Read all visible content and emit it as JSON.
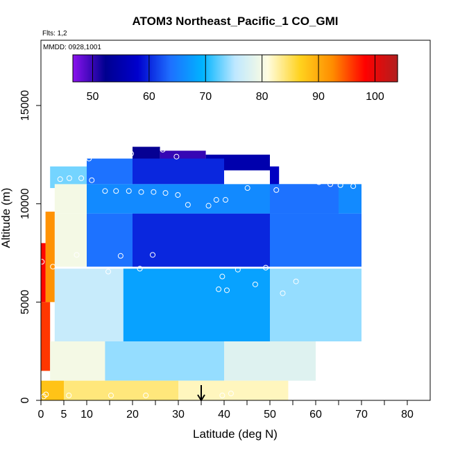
{
  "chart_data": {
    "type": "heatmap",
    "title": "ATOM3 Northeast_Pacific_1 CO_GMI",
    "subtitle": "Flts: 1,2",
    "annotation": "MMDD: 0928,1001",
    "xlabel": "Latitude (deg N)",
    "ylabel": "Altitude (m)",
    "xlim": [
      -0.5,
      84
    ],
    "ylim": [
      0,
      18500
    ],
    "x_ticks": [
      0,
      5,
      10,
      20,
      30,
      40,
      50,
      60,
      70,
      80
    ],
    "x_tick_labels": [
      "0",
      "5",
      "10",
      "20",
      "30",
      "40",
      "50",
      "60",
      "70",
      "80"
    ],
    "x_minor_ticks": [
      15,
      25,
      35,
      45,
      55,
      65,
      75
    ],
    "y_ticks": [
      0,
      5000,
      10000,
      15000
    ],
    "y_tick_labels": [
      "0",
      "5000",
      "10000",
      "15000"
    ],
    "colorbar": {
      "min": 46.5,
      "max": 104,
      "ticks": [
        50,
        60,
        70,
        80,
        90,
        100
      ],
      "tick_labels": [
        "50",
        "60",
        "70",
        "80",
        "90",
        "100"
      ],
      "colors": [
        "#8b12ee",
        "#00008f",
        "#0000cd",
        "#1e6fff",
        "#00b4ff",
        "#bfe8ff",
        "#fffde0",
        "#ffd21e",
        "#ff8c00",
        "#ff0000",
        "#b11f1f"
      ]
    },
    "marker_arrow_latitude": 35,
    "grid": false,
    "legend": "colorbar-top",
    "cells": [
      {
        "lat": [
          20,
          26
        ],
        "alt": [
          12200,
          12900
        ],
        "v": 52
      },
      {
        "lat": [
          26,
          36
        ],
        "alt": [
          11700,
          12700
        ],
        "v": 50
      },
      {
        "lat": [
          36,
          50
        ],
        "alt": [
          11700,
          12500
        ],
        "v": 55
      },
      {
        "lat": [
          50,
          52
        ],
        "alt": [
          10900,
          11900
        ],
        "v": 57
      },
      {
        "lat": [
          20,
          40
        ],
        "alt": [
          11000,
          12300
        ],
        "v": 60
      },
      {
        "lat": [
          10,
          20
        ],
        "alt": [
          11000,
          12300
        ],
        "v": 64
      },
      {
        "lat": [
          2,
          10
        ],
        "alt": [
          10800,
          11900
        ],
        "v": 73
      },
      {
        "lat": [
          10,
          70
        ],
        "alt": [
          9500,
          11000
        ],
        "v": 66
      },
      {
        "lat": [
          50,
          65
        ],
        "alt": [
          9500,
          11000
        ],
        "v": 64
      },
      {
        "lat": [
          3,
          10
        ],
        "alt": [
          9500,
          11000
        ],
        "v": 80
      },
      {
        "lat": [
          10,
          70
        ],
        "alt": [
          6800,
          9500
        ],
        "v": 64
      },
      {
        "lat": [
          20,
          50
        ],
        "alt": [
          6800,
          9500
        ],
        "v": 60
      },
      {
        "lat": [
          3,
          10
        ],
        "alt": [
          6800,
          9500
        ],
        "v": 80
      },
      {
        "lat": [
          1,
          3
        ],
        "alt": [
          5000,
          9600
        ],
        "v": 92
      },
      {
        "lat": [
          0,
          1
        ],
        "alt": [
          5000,
          8000
        ],
        "v": 98
      },
      {
        "lat": [
          3,
          18
        ],
        "alt": [
          3000,
          6700
        ],
        "v": 76
      },
      {
        "lat": [
          18,
          50
        ],
        "alt": [
          3000,
          6700
        ],
        "v": 68
      },
      {
        "lat": [
          50,
          70
        ],
        "alt": [
          3000,
          6700
        ],
        "v": 74
      },
      {
        "lat": [
          0,
          2
        ],
        "alt": [
          1500,
          5000
        ],
        "v": 96
      },
      {
        "lat": [
          2,
          14
        ],
        "alt": [
          1000,
          3000
        ],
        "v": 80
      },
      {
        "lat": [
          14,
          40
        ],
        "alt": [
          1000,
          3000
        ],
        "v": 74
      },
      {
        "lat": [
          40,
          60
        ],
        "alt": [
          1000,
          3000
        ],
        "v": 78
      },
      {
        "lat": [
          0,
          5
        ],
        "alt": [
          0,
          1000
        ],
        "v": 88
      },
      {
        "lat": [
          5,
          30
        ],
        "alt": [
          0,
          1000
        ],
        "v": 84
      },
      {
        "lat": [
          30,
          54
        ],
        "alt": [
          0,
          1000
        ],
        "v": 82
      }
    ],
    "observations": [
      {
        "lat": 10.5,
        "alt": 12300
      },
      {
        "lat": 19.7,
        "alt": 12550
      },
      {
        "lat": 26.6,
        "alt": 12750
      },
      {
        "lat": 29.6,
        "alt": 12400
      },
      {
        "lat": 4.2,
        "alt": 11250
      },
      {
        "lat": 6.2,
        "alt": 11300
      },
      {
        "lat": 8.8,
        "alt": 11300
      },
      {
        "lat": 11.1,
        "alt": 11200
      },
      {
        "lat": 14,
        "alt": 10650
      },
      {
        "lat": 16.4,
        "alt": 10650
      },
      {
        "lat": 19.2,
        "alt": 10650
      },
      {
        "lat": 21.9,
        "alt": 10600
      },
      {
        "lat": 24.6,
        "alt": 10600
      },
      {
        "lat": 27.2,
        "alt": 10550
      },
      {
        "lat": 29.9,
        "alt": 10450
      },
      {
        "lat": 32.1,
        "alt": 9950
      },
      {
        "lat": 36.6,
        "alt": 9900
      },
      {
        "lat": 38.3,
        "alt": 10200
      },
      {
        "lat": 40.3,
        "alt": 10200
      },
      {
        "lat": 45.1,
        "alt": 10800
      },
      {
        "lat": 51.4,
        "alt": 10700
      },
      {
        "lat": 58.5,
        "alt": 11150
      },
      {
        "lat": 60.7,
        "alt": 11100
      },
      {
        "lat": 63.2,
        "alt": 11000
      },
      {
        "lat": 65.4,
        "alt": 10950
      },
      {
        "lat": 68.2,
        "alt": 10900
      },
      {
        "lat": 0.2,
        "alt": 7050
      },
      {
        "lat": 2.6,
        "alt": 6800
      },
      {
        "lat": 7.8,
        "alt": 7400
      },
      {
        "lat": 14.7,
        "alt": 6550
      },
      {
        "lat": 17.4,
        "alt": 7350
      },
      {
        "lat": 21.6,
        "alt": 6700
      },
      {
        "lat": 24.4,
        "alt": 7400
      },
      {
        "lat": 38.8,
        "alt": 5650
      },
      {
        "lat": 39.6,
        "alt": 6300
      },
      {
        "lat": 40.6,
        "alt": 5600
      },
      {
        "lat": 43,
        "alt": 6650
      },
      {
        "lat": 46.8,
        "alt": 5900
      },
      {
        "lat": 49.1,
        "alt": 6750
      },
      {
        "lat": 52.8,
        "alt": 5450
      },
      {
        "lat": 55.7,
        "alt": 6050
      },
      {
        "lat": 0.6,
        "alt": 200
      },
      {
        "lat": 1.1,
        "alt": 300
      },
      {
        "lat": 6.1,
        "alt": 250
      },
      {
        "lat": 15.3,
        "alt": 250
      },
      {
        "lat": 22.9,
        "alt": 250
      },
      {
        "lat": 39.6,
        "alt": 250
      },
      {
        "lat": 41.5,
        "alt": 350
      }
    ]
  }
}
